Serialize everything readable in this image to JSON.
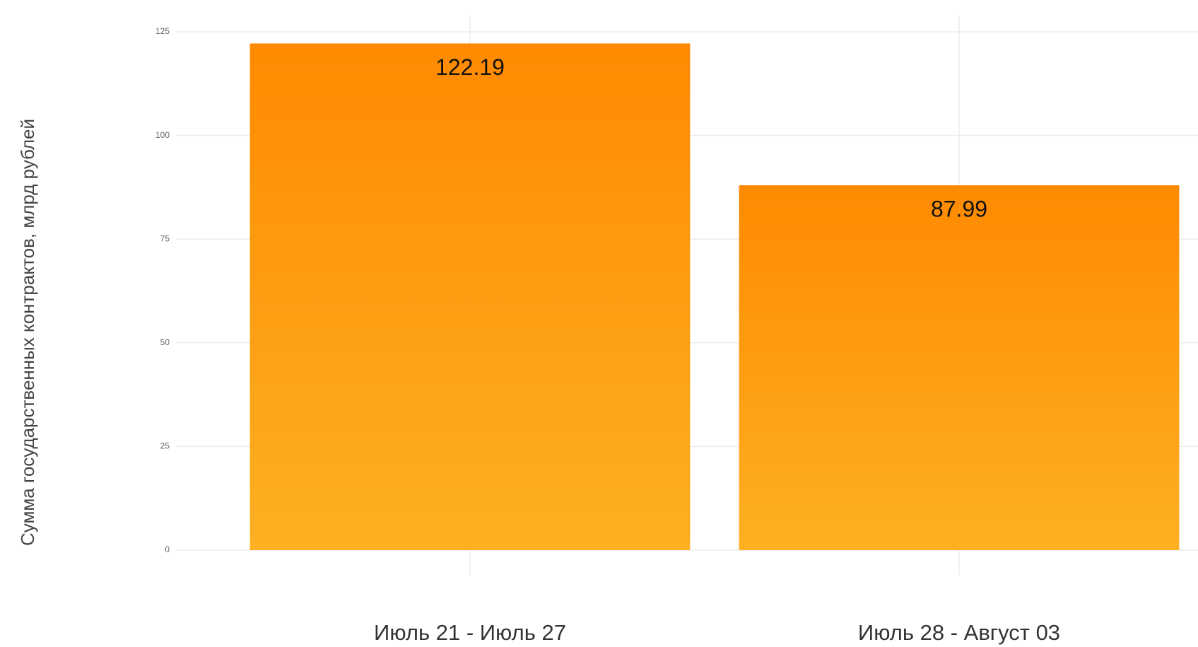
{
  "chart_data": {
    "type": "bar",
    "y_label": "Сумма государственных контрактов, млрд рублей",
    "categories": [
      "Июль 21 - Июль 27",
      "Июль 28 - Август 03"
    ],
    "values": [
      122.19,
      87.99
    ],
    "color": "#ff8a00",
    "ylim": [
      0,
      125
    ],
    "yticks": [
      0,
      25,
      50,
      75,
      100,
      125
    ],
    "grid": true
  }
}
